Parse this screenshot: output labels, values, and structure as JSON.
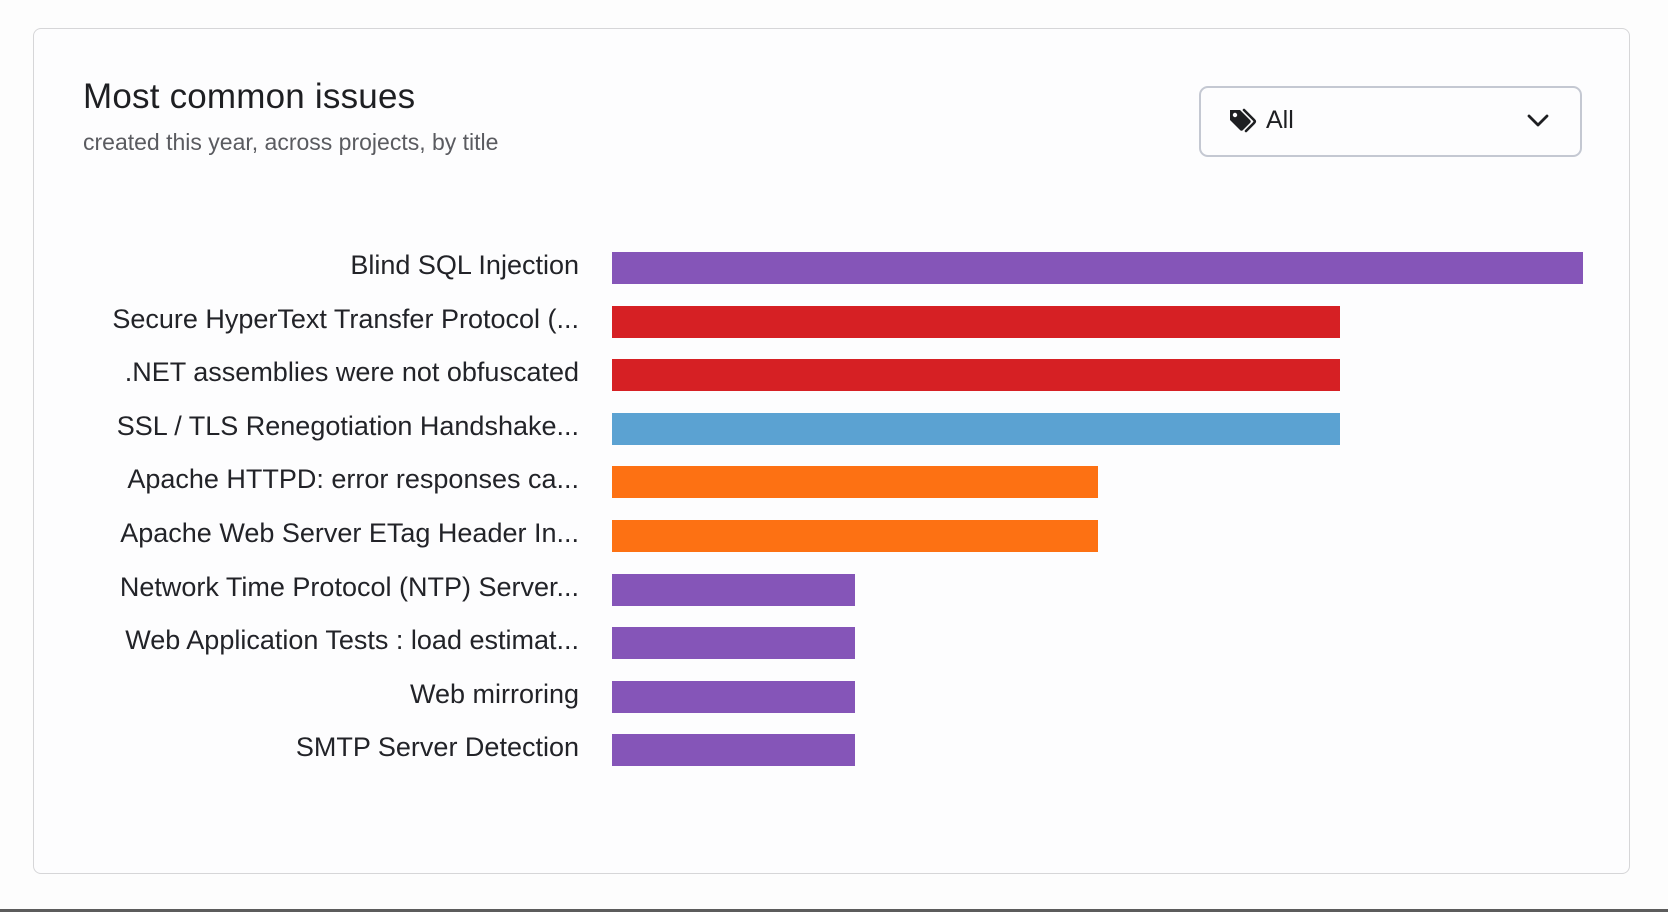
{
  "card": {
    "title": "Most common issues",
    "subtitle": "created this year, across projects, by title"
  },
  "filter": {
    "icon": "tags-icon",
    "selected": "All",
    "chevron": "chevron-down-icon"
  },
  "colors": {
    "purple": "#8555b8",
    "red": "#d62024",
    "blue": "#5ba2d2",
    "orange": "#fd7113"
  },
  "chart_data": {
    "type": "bar",
    "orientation": "horizontal",
    "title": "Most common issues",
    "subtitle": "created this year, across projects, by title",
    "xlabel": "",
    "ylabel": "",
    "grid": false,
    "legend": "none",
    "xlim": [
      0,
      4
    ],
    "categories": [
      "Blind SQL Injection",
      "Secure HyperText Transfer Protocol (...",
      ".NET assemblies were not obfuscated",
      "SSL / TLS Renegotiation Handshake...",
      "Apache HTTPD: error responses ca...",
      "Apache Web Server ETag Header In...",
      "Network Time Protocol (NTP) Server...",
      "Web Application Tests : load estimat...",
      "Web mirroring",
      "SMTP Server Detection"
    ],
    "values": [
      4,
      3,
      3,
      3,
      2,
      2,
      1,
      1,
      1,
      1
    ],
    "bar_colors": [
      "#8555b8",
      "#d62024",
      "#d62024",
      "#5ba2d2",
      "#fd7113",
      "#fd7113",
      "#8555b8",
      "#8555b8",
      "#8555b8",
      "#8555b8"
    ]
  }
}
